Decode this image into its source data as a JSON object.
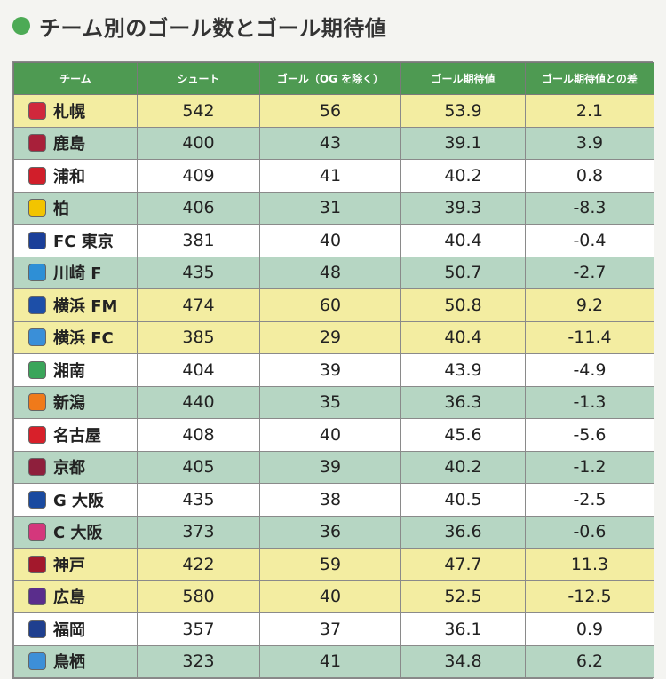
{
  "title": "チーム別のゴール数とゴール期待値",
  "chart_data": {
    "type": "table",
    "columns": [
      "チーム",
      "シュート",
      "ゴール（OG を除く）",
      "ゴール期待値",
      "ゴール期待値との差"
    ],
    "rows": [
      {
        "team": "札幌",
        "shots": "542",
        "goals": "56",
        "xg": "53.9",
        "diff": "2.1",
        "tone": "y",
        "badge_color": "#d0283c",
        "badge_icon": "consadole-crest-icon"
      },
      {
        "team": "鹿島",
        "shots": "400",
        "goals": "43",
        "xg": "39.1",
        "diff": "3.9",
        "tone": "g",
        "badge_color": "#a8203a",
        "badge_icon": "antlers-crest-icon"
      },
      {
        "team": "浦和",
        "shots": "409",
        "goals": "41",
        "xg": "40.2",
        "diff": "0.8",
        "tone": "w",
        "badge_color": "#d11e2a",
        "badge_icon": "reds-crest-icon"
      },
      {
        "team": "柏",
        "shots": "406",
        "goals": "31",
        "xg": "39.3",
        "diff": "-8.3",
        "tone": "g",
        "badge_color": "#f2c400",
        "badge_icon": "reysol-crest-icon"
      },
      {
        "team": "FC 東京",
        "shots": "381",
        "goals": "40",
        "xg": "40.4",
        "diff": "-0.4",
        "tone": "w",
        "badge_color": "#1b3f99",
        "badge_icon": "fc-tokyo-crest-icon"
      },
      {
        "team": "川崎 F",
        "shots": "435",
        "goals": "48",
        "xg": "50.7",
        "diff": "-2.7",
        "tone": "g",
        "badge_color": "#2e8fd6",
        "badge_icon": "frontale-crest-icon"
      },
      {
        "team": "横浜 FM",
        "shots": "474",
        "goals": "60",
        "xg": "50.8",
        "diff": "9.2",
        "tone": "y",
        "badge_color": "#1d4fa8",
        "badge_icon": "marinos-crest-icon"
      },
      {
        "team": "横浜 FC",
        "shots": "385",
        "goals": "29",
        "xg": "40.4",
        "diff": "-11.4",
        "tone": "y",
        "badge_color": "#3a8fd8",
        "badge_icon": "yokohama-fc-crest-icon"
      },
      {
        "team": "湘南",
        "shots": "404",
        "goals": "39",
        "xg": "43.9",
        "diff": "-4.9",
        "tone": "w",
        "badge_color": "#3aa55a",
        "badge_icon": "bellmare-crest-icon"
      },
      {
        "team": "新潟",
        "shots": "440",
        "goals": "35",
        "xg": "36.3",
        "diff": "-1.3",
        "tone": "g",
        "badge_color": "#f07a1a",
        "badge_icon": "albirex-crest-icon"
      },
      {
        "team": "名古屋",
        "shots": "408",
        "goals": "40",
        "xg": "45.6",
        "diff": "-5.6",
        "tone": "w",
        "badge_color": "#d8202a",
        "badge_icon": "grampus-crest-icon"
      },
      {
        "team": "京都",
        "shots": "405",
        "goals": "39",
        "xg": "40.2",
        "diff": "-1.2",
        "tone": "g",
        "badge_color": "#8e1f3c",
        "badge_icon": "sanga-crest-icon"
      },
      {
        "team": "G 大阪",
        "shots": "435",
        "goals": "38",
        "xg": "40.5",
        "diff": "-2.5",
        "tone": "w",
        "badge_color": "#1a4aa0",
        "badge_icon": "gamba-crest-icon"
      },
      {
        "team": "C 大阪",
        "shots": "373",
        "goals": "36",
        "xg": "36.6",
        "diff": "-0.6",
        "tone": "g",
        "badge_color": "#d4377c",
        "badge_icon": "cerezo-crest-icon"
      },
      {
        "team": "神戸",
        "shots": "422",
        "goals": "59",
        "xg": "47.7",
        "diff": "11.3",
        "tone": "y",
        "badge_color": "#a3182c",
        "badge_icon": "vissel-crest-icon"
      },
      {
        "team": "広島",
        "shots": "580",
        "goals": "40",
        "xg": "52.5",
        "diff": "-12.5",
        "tone": "y",
        "badge_color": "#5a2d8c",
        "badge_icon": "sanfrecce-crest-icon"
      },
      {
        "team": "福岡",
        "shots": "357",
        "goals": "37",
        "xg": "36.1",
        "diff": "0.9",
        "tone": "w",
        "badge_color": "#1f3f8f",
        "badge_icon": "avispa-crest-icon"
      },
      {
        "team": "鳥栖",
        "shots": "323",
        "goals": "41",
        "xg": "34.8",
        "diff": "6.2",
        "tone": "g",
        "badge_color": "#3d8fd8",
        "badge_icon": "sagan-crest-icon"
      }
    ]
  },
  "colors": {
    "header_bg": "#4e9a52",
    "row_yellow": "#f3eda1",
    "row_green": "#b6d6c3",
    "row_white": "#ffffff",
    "title_dot": "#4caa55"
  }
}
